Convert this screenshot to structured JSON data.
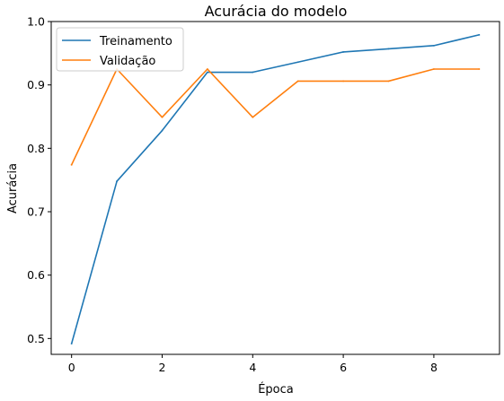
{
  "chart_data": {
    "type": "line",
    "title": "Acurácia do modelo",
    "xlabel": "Época",
    "ylabel": "Acurácia",
    "x": [
      0,
      1,
      2,
      3,
      4,
      5,
      6,
      7,
      8,
      9
    ],
    "xlim": [
      -0.45,
      9.45
    ],
    "ylim": [
      0.475,
      1.0
    ],
    "xticks": [
      0,
      2,
      4,
      6,
      8
    ],
    "yticks": [
      0.5,
      0.6,
      0.7,
      0.8,
      0.9,
      1.0
    ],
    "xtick_labels": [
      "0",
      "2",
      "4",
      "6",
      "8"
    ],
    "ytick_labels": [
      "0.5",
      "0.6",
      "0.7",
      "0.8",
      "0.9",
      "1.0"
    ],
    "legend_placement": "upper-left",
    "grid": false,
    "series": [
      {
        "name": "Treinamento",
        "color": "#1f77b4",
        "values": [
          0.492,
          0.748,
          0.828,
          0.92,
          0.92,
          0.936,
          0.952,
          0.957,
          0.962,
          0.979
        ]
      },
      {
        "name": "Validação",
        "color": "#ff7f0e",
        "values": [
          0.774,
          0.925,
          0.849,
          0.925,
          0.849,
          0.906,
          0.906,
          0.906,
          0.925,
          0.925
        ]
      }
    ]
  }
}
